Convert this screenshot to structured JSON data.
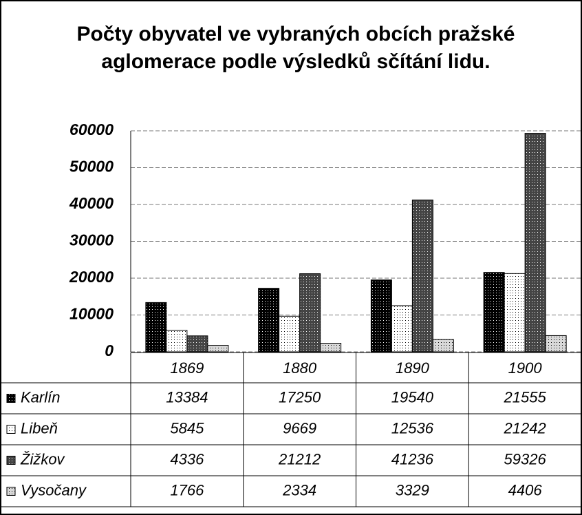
{
  "chart_data": {
    "type": "bar",
    "title": "Počty obyvatel ve vybraných obcích pražské aglomerace podle výsledků sčítání lidu.",
    "categories": [
      "1869",
      "1880",
      "1890",
      "1900"
    ],
    "series": [
      {
        "name": "Karlín",
        "color": "#000000",
        "values": [
          13384,
          17250,
          19540,
          21555
        ]
      },
      {
        "name": "Libeň",
        "color": "#ffffff",
        "values": [
          5845,
          9669,
          12536,
          21242
        ]
      },
      {
        "name": "Žižkov",
        "color": "#444444",
        "values": [
          4336,
          21212,
          41236,
          59326
        ]
      },
      {
        "name": "Vysočany",
        "color": "#d8d8d8",
        "values": [
          1766,
          2334,
          3329,
          4406
        ]
      }
    ],
    "ylim": [
      0,
      60000
    ],
    "yticks": [
      0,
      10000,
      20000,
      30000,
      40000,
      50000,
      60000
    ],
    "grid": true,
    "data_table": true
  }
}
